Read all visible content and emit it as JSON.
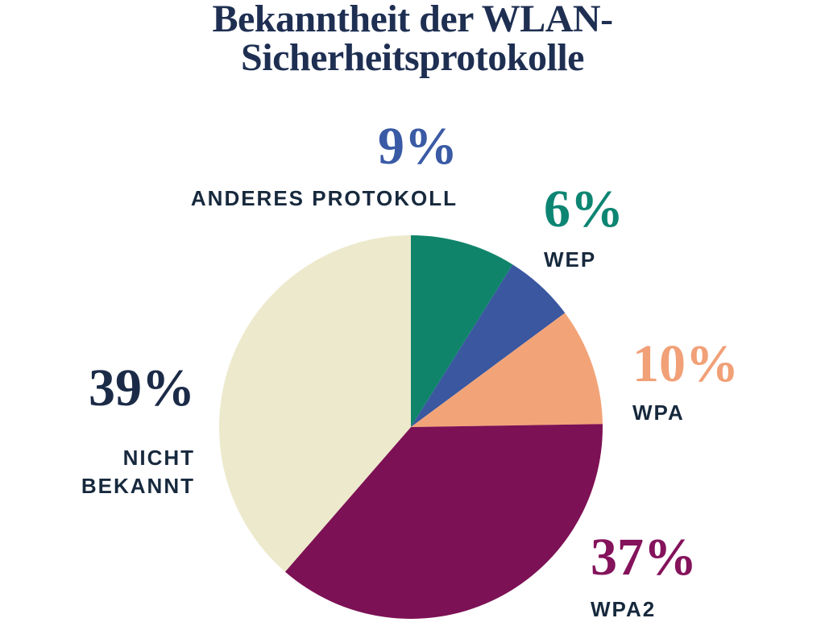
{
  "page": {
    "background": "#FFFFFF"
  },
  "chart_data": {
    "type": "pie",
    "title": "Bekanntheit der WLAN-Sicherheitsprotokolle",
    "unit": "%",
    "direction": "clockwise",
    "start_angle_deg": 0,
    "legend_position": "callouts-around-pie",
    "displayed_total_pct": 101,
    "slices": [
      {
        "label": "ANDERES PROTOKOLL",
        "value": 9,
        "display": "9%",
        "color": "#10846B",
        "number_color": "#3A5AA5"
      },
      {
        "label": "WEP",
        "value": 6,
        "display": "6%",
        "color": "#3A57A0",
        "number_color": "#0D8573"
      },
      {
        "label": "WPA",
        "value": 10,
        "display": "10%",
        "color": "#F2A478",
        "number_color": "#F1A077"
      },
      {
        "label": "WPA2",
        "value": 37,
        "display": "37%",
        "color": "#7D1155",
        "number_color": "#84135B"
      },
      {
        "label": "NICHT BEKANNT",
        "value": 39,
        "display": "39%",
        "color": "#EDE9CC",
        "number_color": "#1B2B47"
      }
    ],
    "palette": {
      "background": "#FFFFFF",
      "title_color": "#1E2F52",
      "label_text_color": "#17293D"
    }
  }
}
